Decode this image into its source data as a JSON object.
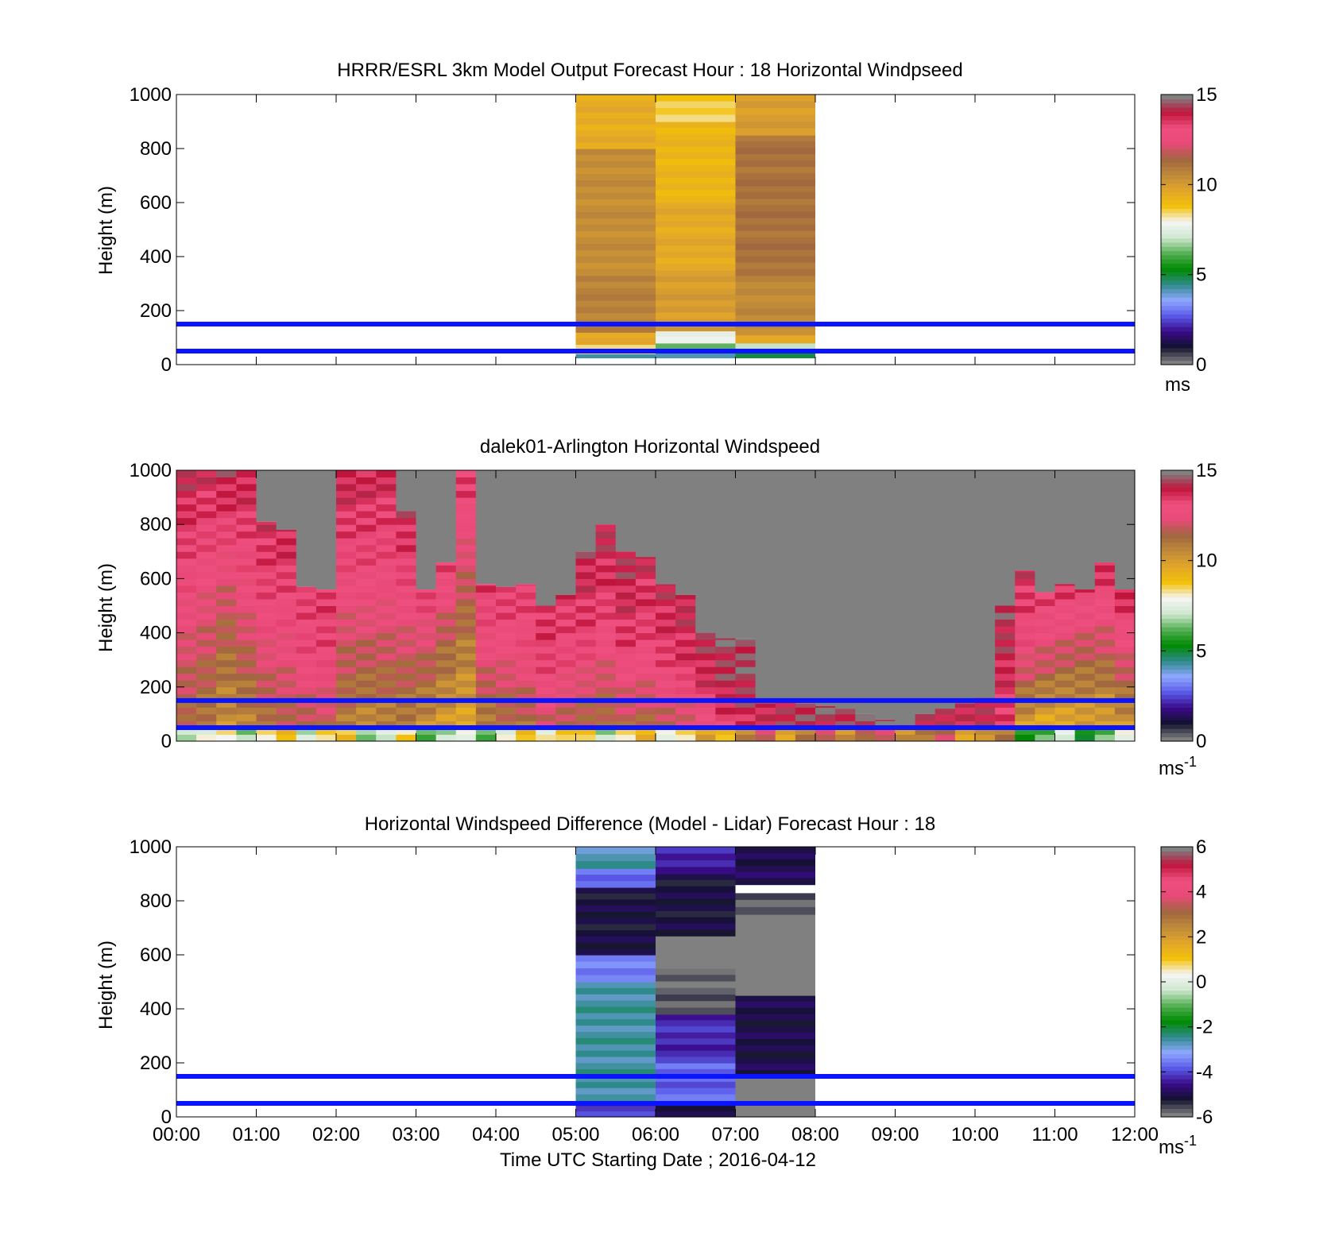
{
  "colors": {
    "ref_line": "#0a14ff",
    "missing": "#808080",
    "nodata": "#ffffff",
    "wind_scale": [
      "#808080",
      "#12122e",
      "#3a0a8a",
      "#5a5ae8",
      "#8fa8ff",
      "#2e8a8a",
      "#008a00",
      "#55b055",
      "#cfe8cf",
      "#f5f5f5",
      "#f2c10a",
      "#e2a62a",
      "#c08a3a",
      "#a0663f",
      "#e84a78",
      "#ef4f7f",
      "#c0143c",
      "#808080"
    ],
    "diff_scale": [
      "#808080",
      "#12122e",
      "#3a0a8a",
      "#5a5ae8",
      "#8fa8ff",
      "#2e8a8a",
      "#008a00",
      "#55b055",
      "#cfe8cf",
      "#f5f5f5",
      "#f2c10a",
      "#e2a62a",
      "#c08a3a",
      "#a0663f",
      "#e84a78",
      "#ef4f7f",
      "#c0143c",
      "#808080"
    ]
  },
  "axes": {
    "x_ticks": [
      "00:00",
      "01:00",
      "02:00",
      "03:00",
      "04:00",
      "05:00",
      "06:00",
      "07:00",
      "08:00",
      "09:00",
      "10:00",
      "11:00",
      "12:00"
    ],
    "x_range_hours": [
      0,
      12
    ],
    "y_ticks": [
      "0",
      "200",
      "400",
      "600",
      "800",
      "1000"
    ],
    "y_range_m": [
      0,
      1000
    ],
    "ylabel": "Height (m)",
    "xlabel": "Time UTC  Starting Date ; 2016-04-12"
  },
  "chart_data": [
    {
      "type": "heatmap",
      "title": "HRRR/ESRL 3km Model Output   Forecast Hour : 18 Horizontal Windpseed",
      "ylabel": "Height (m)",
      "xlim": [
        0,
        12
      ],
      "ylim": [
        0,
        1000
      ],
      "reference_lines_m": [
        150,
        50
      ],
      "colorbar": {
        "ticks": [
          "0",
          "5",
          "10",
          "15"
        ],
        "range": [
          0,
          15
        ],
        "unit": "ms"
      },
      "columns": [
        {
          "start": 5,
          "end": 6,
          "levels": [
            {
              "from": 25,
              "to": 40,
              "value": 4.5
            },
            {
              "from": 40,
              "to": 75,
              "value": 8.5
            },
            {
              "from": 75,
              "to": 120,
              "value": 9.5
            },
            {
              "from": 120,
              "to": 330,
              "value": 10.8
            },
            {
              "from": 330,
              "to": 800,
              "value": 10.5
            },
            {
              "from": 800,
              "to": 1000,
              "value": 9.5
            }
          ]
        },
        {
          "start": 6,
          "end": 7,
          "levels": [
            {
              "from": 25,
              "to": 50,
              "value": 4.0
            },
            {
              "from": 50,
              "to": 80,
              "value": 6.0
            },
            {
              "from": 80,
              "to": 125,
              "value": 7.8
            },
            {
              "from": 125,
              "to": 350,
              "value": 10.0
            },
            {
              "from": 350,
              "to": 600,
              "value": 9.6
            },
            {
              "from": 600,
              "to": 900,
              "value": 9.2
            },
            {
              "from": 900,
              "to": 1000,
              "value": 8.6
            }
          ]
        },
        {
          "start": 7,
          "end": 8,
          "levels": [
            {
              "from": 25,
              "to": 45,
              "value": 5.0
            },
            {
              "from": 45,
              "to": 80,
              "value": 7.0
            },
            {
              "from": 80,
              "to": 110,
              "value": 9.5
            },
            {
              "from": 110,
              "to": 330,
              "value": 10.6
            },
            {
              "from": 330,
              "to": 850,
              "value": 11.2
            },
            {
              "from": 850,
              "to": 1000,
              "value": 10.0
            }
          ]
        }
      ]
    },
    {
      "type": "heatmap",
      "title": "dalek01-Arlington  Horizontal Windspeed",
      "ylabel": "Height (m)",
      "xlim": [
        0,
        12
      ],
      "ylim": [
        0,
        1000
      ],
      "reference_lines_m": [
        150,
        50
      ],
      "colorbar": {
        "ticks": [
          "0",
          "5",
          "10",
          "15"
        ],
        "range": [
          0,
          15
        ],
        "unit": "ms",
        "unit_exponent": "-1"
      },
      "profiles": [
        {
          "t": 0.0,
          "top": 1000,
          "low": 11.2,
          "mid": 12.8,
          "high": 14.2
        },
        {
          "t": 0.25,
          "top": 1000,
          "low": 10.8,
          "mid": 12.5,
          "high": 14.0
        },
        {
          "t": 0.5,
          "top": 1000,
          "low": 10.2,
          "mid": 12.0,
          "high": 14.3
        },
        {
          "t": 0.75,
          "top": 1000,
          "low": 10.5,
          "mid": 12.6,
          "high": 14.1
        },
        {
          "t": 1.0,
          "top": 810,
          "low": 11.0,
          "mid": 12.9,
          "high": 13.9
        },
        {
          "t": 1.25,
          "top": 780,
          "low": 11.4,
          "mid": 12.8,
          "high": 14.0
        },
        {
          "t": 1.5,
          "top": 570,
          "low": 11.2,
          "mid": 13.0,
          "high": 13.5
        },
        {
          "t": 1.75,
          "top": 560,
          "low": 11.5,
          "mid": 13.2,
          "high": 13.6
        },
        {
          "t": 2.0,
          "top": 1000,
          "low": 10.8,
          "mid": 12.6,
          "high": 14.2
        },
        {
          "t": 2.25,
          "top": 1000,
          "low": 10.3,
          "mid": 12.8,
          "high": 14.0
        },
        {
          "t": 2.5,
          "top": 1000,
          "low": 10.5,
          "mid": 12.7,
          "high": 13.9
        },
        {
          "t": 2.75,
          "top": 850,
          "low": 10.6,
          "mid": 12.5,
          "high": 14.1
        },
        {
          "t": 3.0,
          "top": 560,
          "low": 10.1,
          "mid": 11.8,
          "high": 13.6
        },
        {
          "t": 3.25,
          "top": 660,
          "low": 9.8,
          "mid": 11.4,
          "high": 13.5
        },
        {
          "t": 3.5,
          "top": 1000,
          "low": 9.5,
          "mid": 11.6,
          "high": 13.8
        },
        {
          "t": 3.75,
          "top": 580,
          "low": 10.4,
          "mid": 12.5,
          "high": 13.6
        },
        {
          "t": 4.0,
          "top": 570,
          "low": 10.8,
          "mid": 12.6,
          "high": 13.7
        },
        {
          "t": 4.25,
          "top": 580,
          "low": 11.0,
          "mid": 12.8,
          "high": 13.5
        },
        {
          "t": 4.5,
          "top": 500,
          "low": 11.8,
          "mid": 13.2,
          "high": 13.9
        },
        {
          "t": 4.75,
          "top": 540,
          "low": 11.5,
          "mid": 13.0,
          "high": 13.7
        },
        {
          "t": 5.0,
          "top": 700,
          "low": 11.0,
          "mid": 13.3,
          "high": 14.2
        },
        {
          "t": 5.25,
          "top": 800,
          "low": 10.9,
          "mid": 13.1,
          "high": 14.3
        },
        {
          "t": 5.5,
          "top": 700,
          "low": 11.3,
          "mid": 13.5,
          "high": 14.4
        },
        {
          "t": 5.75,
          "top": 680,
          "low": 11.2,
          "mid": 13.2,
          "high": 14.0
        },
        {
          "t": 6.0,
          "top": 580,
          "low": 11.5,
          "mid": 13.4,
          "high": 14.1
        },
        {
          "t": 6.25,
          "top": 540,
          "low": 11.6,
          "mid": 13.6,
          "high": 14.2
        },
        {
          "t": 6.5,
          "top": 400,
          "low": 12.0,
          "mid": 13.8,
          "high": 14.3
        },
        {
          "t": 6.75,
          "top": 380,
          "low": 13.0,
          "mid": 14.2,
          "high": 14.6
        },
        {
          "t": 7.0,
          "top": 380,
          "low": 13.6,
          "mid": 14.4,
          "high": 14.7
        },
        {
          "t": 7.25,
          "top": 140,
          "low": 13.8,
          "mid": 14.0,
          "high": 14.2
        },
        {
          "t": 7.5,
          "top": 150,
          "low": 14.0,
          "mid": 14.2,
          "high": 14.3
        },
        {
          "t": 7.75,
          "top": 140,
          "low": 14.1,
          "mid": 14.3,
          "high": 14.4
        },
        {
          "t": 8.0,
          "top": 130,
          "low": 14.0,
          "mid": 14.4,
          "high": 14.5
        },
        {
          "t": 8.25,
          "top": 120,
          "low": 14.2,
          "mid": 14.5,
          "high": 14.6
        },
        {
          "t": 8.5,
          "top": 100,
          "low": 14.3,
          "mid": 14.6,
          "high": 14.7
        },
        {
          "t": 8.75,
          "top": 80,
          "low": 14.4,
          "mid": 14.6,
          "high": 14.7
        },
        {
          "t": 9.0,
          "top": 60,
          "low": 14.5,
          "mid": 14.6,
          "high": 14.7
        },
        {
          "t": 9.25,
          "top": 100,
          "low": 14.0,
          "mid": 14.3,
          "high": 14.5
        },
        {
          "t": 9.5,
          "top": 120,
          "low": 13.8,
          "mid": 14.2,
          "high": 14.5
        },
        {
          "t": 9.75,
          "top": 140,
          "low": 13.5,
          "mid": 14.0,
          "high": 14.4
        },
        {
          "t": 10.0,
          "top": 160,
          "low": 13.6,
          "mid": 14.1,
          "high": 14.5
        },
        {
          "t": 10.25,
          "top": 500,
          "low": 13.2,
          "mid": 13.9,
          "high": 14.5
        },
        {
          "t": 10.5,
          "top": 630,
          "low": 9.5,
          "mid": 12.8,
          "high": 14.0
        },
        {
          "t": 10.75,
          "top": 550,
          "low": 9.0,
          "mid": 12.0,
          "high": 13.6
        },
        {
          "t": 11.0,
          "top": 580,
          "low": 9.2,
          "mid": 11.8,
          "high": 13.8
        },
        {
          "t": 11.25,
          "top": 560,
          "low": 9.5,
          "mid": 11.5,
          "high": 13.6
        },
        {
          "t": 11.5,
          "top": 660,
          "low": 9.4,
          "mid": 11.9,
          "high": 14.0
        },
        {
          "t": 11.75,
          "top": 560,
          "low": 9.8,
          "mid": 12.2,
          "high": 14.1
        }
      ]
    },
    {
      "type": "heatmap",
      "title": "Horizontal Windspeed Difference (Model - Lidar) Forecast Hour : 18",
      "ylabel": "Height (m)",
      "xlabel": "Time UTC  Starting Date ; 2016-04-12",
      "xlim": [
        0,
        12
      ],
      "ylim": [
        0,
        1000
      ],
      "reference_lines_m": [
        150,
        50
      ],
      "colorbar": {
        "ticks": [
          "-6",
          "-4",
          "-2",
          "0",
          "2",
          "4",
          "6"
        ],
        "range": [
          -6,
          6
        ],
        "unit": "ms",
        "unit_exponent": "-1"
      },
      "columns": [
        {
          "start": 5,
          "end": 6,
          "levels": [
            {
              "from": 0,
              "to": 60,
              "value": -4.2
            },
            {
              "from": 60,
              "to": 500,
              "value": -2.6
            },
            {
              "from": 500,
              "to": 600,
              "value": -3.6
            },
            {
              "from": 600,
              "to": 850,
              "value": -5.2
            },
            {
              "from": 850,
              "to": 920,
              "value": -3.8
            },
            {
              "from": 920,
              "to": 1000,
              "value": -2.7
            }
          ]
        },
        {
          "start": 6,
          "end": 7,
          "levels": [
            {
              "from": 0,
              "to": 60,
              "value": -5.0
            },
            {
              "from": 60,
              "to": 200,
              "value": -3.8
            },
            {
              "from": 200,
              "to": 380,
              "value": -4.3
            },
            {
              "from": 380,
              "to": 550,
              "value": -5.8
            },
            {
              "from": 550,
              "to": 670,
              "value": -7.0
            },
            {
              "from": 670,
              "to": 900,
              "value": -5.2
            },
            {
              "from": 900,
              "to": 1000,
              "value": -4.4
            }
          ]
        },
        {
          "start": 7,
          "end": 8,
          "levels": [
            {
              "from": 0,
              "to": 150,
              "value": -7.0
            },
            {
              "from": 150,
              "to": 450,
              "value": -5.1
            },
            {
              "from": 450,
              "to": 750,
              "value": -7.0
            },
            {
              "from": 750,
              "to": 830,
              "value": -5.8
            },
            {
              "from": 830,
              "to": 860,
              "value": "gap"
            },
            {
              "from": 860,
              "to": 1000,
              "value": -5.0
            }
          ]
        }
      ]
    }
  ]
}
